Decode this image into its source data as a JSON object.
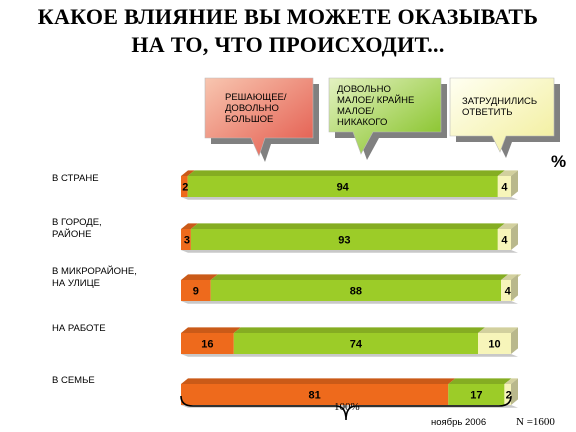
{
  "title_line1": "КАКОЕ ВЛИЯНИЕ ВЫ МОЖЕТЕ ОКАЗЫВАТЬ",
  "title_line2": "НА ТО, ЧТО ПРОИСХОДИТ...",
  "legend": {
    "influence": "РЕШАЮЩЕЕ/\nДОВОЛЬНО\nБОЛЬШОЕ",
    "little": "ДОВОЛЬНО\nМАЛОЕ/ КРАЙНЕ\nМАЛОЕ/\nНИКАКОГО",
    "dontknow": "ЗАТРУДНИЛИСЬ\nОТВЕТИТЬ"
  },
  "percent_sign": "%",
  "brace_label": "100%",
  "date_note": "ноябрь 2006",
  "sample_note": "N =1600",
  "colors": {
    "influence": "#ee6a1c",
    "little": "#9ccc28",
    "dontknow": "#f7f5ba"
  },
  "chart_data": {
    "type": "bar",
    "stacked": true,
    "orientation": "horizontal",
    "categories": [
      "В СТРАНЕ",
      "В ГОРОДЕ,\nРАЙОНЕ",
      "В МИКРОРАЙОНЕ,\nНА УЛИЦЕ",
      "НА РАБОТЕ",
      "В СЕМЬЕ"
    ],
    "series": [
      {
        "name": "РЕШАЮЩЕЕ/ ДОВОЛЬНО БОЛЬШОЕ",
        "values": [
          2,
          3,
          9,
          16,
          81
        ]
      },
      {
        "name": "ДОВОЛЬНО МАЛОЕ/ КРАЙНЕ МАЛОЕ/ НИКАКОГО",
        "values": [
          94,
          93,
          88,
          74,
          17
        ]
      },
      {
        "name": "ЗАТРУДНИЛИСЬ ОТВЕТИТЬ",
        "values": [
          4,
          4,
          4,
          10,
          2
        ]
      }
    ],
    "xlim": [
      0,
      100
    ]
  }
}
